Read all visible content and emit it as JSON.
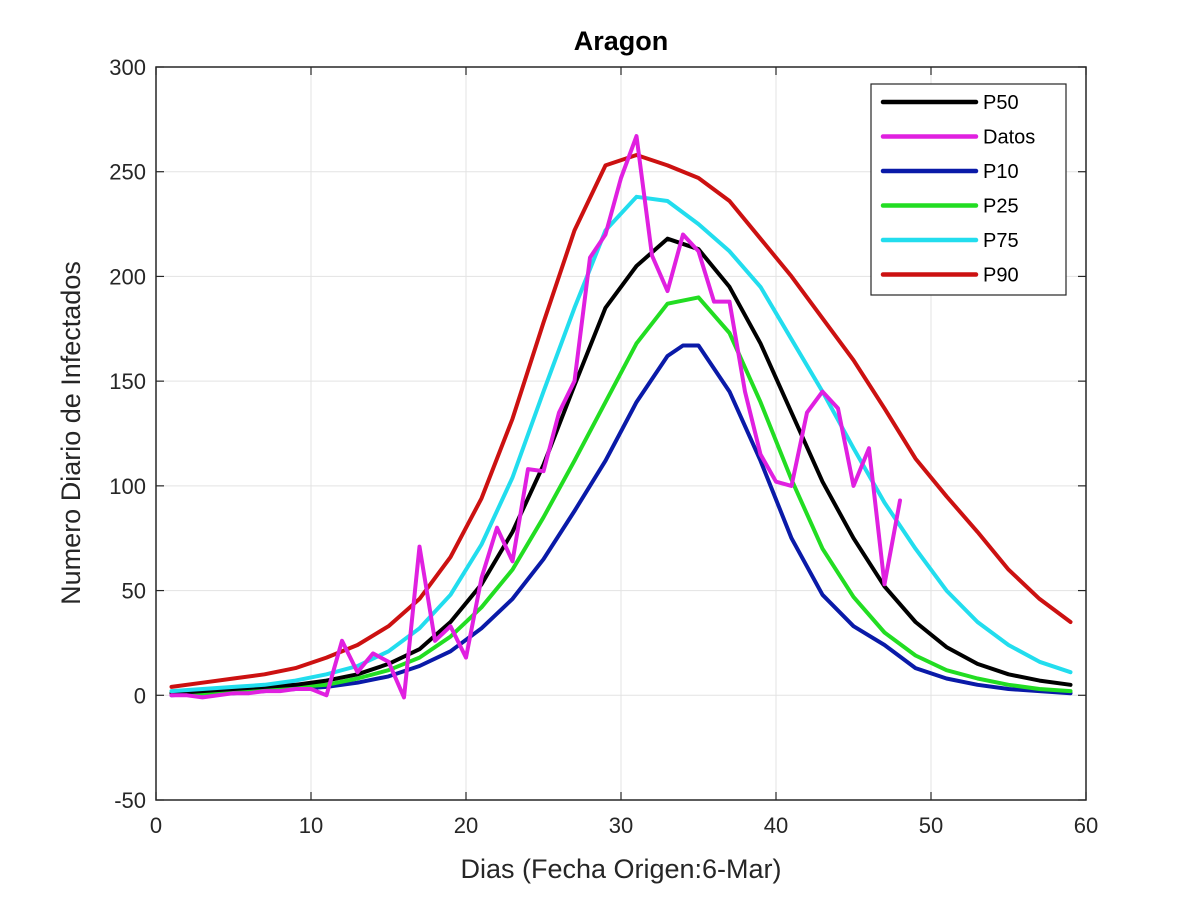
{
  "chart_data": {
    "type": "line",
    "title": "Aragon",
    "xlabel": "Dias (Fecha Origen:6-Mar)",
    "ylabel": "Numero Diario de Infectados",
    "xlim": [
      0,
      60
    ],
    "ylim": [
      -50,
      300
    ],
    "xticks": [
      0,
      10,
      20,
      30,
      40,
      50,
      60
    ],
    "yticks": [
      -50,
      0,
      50,
      100,
      150,
      200,
      250,
      300
    ],
    "grid": true,
    "legend_position": "top-right",
    "series": [
      {
        "name": "P50",
        "color": "#000000",
        "x": [
          1,
          3,
          5,
          7,
          9,
          11,
          13,
          15,
          17,
          19,
          21,
          23,
          25,
          27,
          29,
          31,
          33,
          35,
          37,
          39,
          41,
          43,
          45,
          47,
          49,
          51,
          53,
          55,
          57,
          59
        ],
        "values": [
          1,
          2,
          3,
          4,
          5,
          7,
          10,
          15,
          22,
          35,
          53,
          78,
          110,
          148,
          185,
          205,
          218,
          213,
          195,
          168,
          135,
          102,
          75,
          52,
          35,
          23,
          15,
          10,
          7,
          5
        ]
      },
      {
        "name": "Datos",
        "color": "#e020e0",
        "x": [
          1,
          2,
          3,
          4,
          5,
          6,
          7,
          8,
          9,
          10,
          11,
          12,
          13,
          14,
          15,
          16,
          17,
          18,
          19,
          20,
          21,
          22,
          23,
          24,
          25,
          26,
          27,
          28,
          29,
          30,
          31,
          32,
          33,
          34,
          35,
          36,
          37,
          38,
          39,
          40,
          41,
          42,
          43,
          44,
          45,
          46,
          47,
          48
        ],
        "values": [
          0,
          0,
          -1,
          0,
          1,
          1,
          2,
          2,
          3,
          3,
          0,
          26,
          11,
          20,
          16,
          -1,
          71,
          26,
          33,
          18,
          56,
          80,
          64,
          108,
          107,
          135,
          150,
          209,
          220,
          247,
          267,
          210,
          193,
          220,
          212,
          188,
          188,
          145,
          115,
          102,
          100,
          135,
          145,
          137,
          100,
          118,
          53,
          93
        ]
      },
      {
        "name": "P10",
        "color": "#0a1aa8",
        "x": [
          1,
          3,
          5,
          7,
          9,
          11,
          13,
          15,
          17,
          19,
          21,
          23,
          25,
          27,
          29,
          31,
          33,
          34,
          35,
          37,
          39,
          41,
          43,
          45,
          47,
          49,
          51,
          53,
          55,
          57,
          59
        ],
        "values": [
          0,
          1,
          1,
          2,
          3,
          4,
          6,
          9,
          14,
          21,
          32,
          46,
          65,
          88,
          112,
          140,
          162,
          167,
          167,
          145,
          112,
          75,
          48,
          33,
          24,
          13,
          8,
          5,
          3,
          2,
          1
        ]
      },
      {
        "name": "P25",
        "color": "#22dd22",
        "x": [
          1,
          3,
          5,
          7,
          9,
          11,
          13,
          15,
          17,
          19,
          21,
          23,
          25,
          27,
          29,
          31,
          33,
          35,
          37,
          39,
          41,
          43,
          45,
          47,
          49,
          51,
          53,
          55,
          57,
          59
        ],
        "values": [
          1,
          1,
          2,
          3,
          4,
          5,
          8,
          12,
          18,
          28,
          42,
          60,
          85,
          112,
          140,
          168,
          187,
          190,
          173,
          140,
          103,
          70,
          47,
          30,
          19,
          12,
          8,
          5,
          3,
          2
        ]
      },
      {
        "name": "P75",
        "color": "#22ddee",
        "x": [
          1,
          3,
          5,
          7,
          9,
          11,
          13,
          15,
          17,
          19,
          21,
          23,
          25,
          27,
          29,
          31,
          33,
          35,
          37,
          39,
          41,
          43,
          45,
          47,
          49,
          51,
          53,
          55,
          57,
          59
        ],
        "values": [
          2,
          3,
          4,
          5,
          7,
          10,
          14,
          21,
          32,
          48,
          72,
          104,
          145,
          185,
          222,
          238,
          236,
          225,
          212,
          195,
          170,
          145,
          118,
          92,
          70,
          50,
          35,
          24,
          16,
          11
        ]
      },
      {
        "name": "P90",
        "color": "#cc1111",
        "x": [
          1,
          3,
          5,
          7,
          9,
          11,
          13,
          15,
          17,
          19,
          21,
          23,
          25,
          27,
          29,
          31,
          33,
          35,
          37,
          39,
          41,
          43,
          45,
          47,
          49,
          51,
          53,
          55,
          57,
          59
        ],
        "values": [
          4,
          6,
          8,
          10,
          13,
          18,
          24,
          33,
          46,
          66,
          94,
          132,
          178,
          222,
          253,
          258,
          253,
          247,
          236,
          218,
          200,
          180,
          160,
          137,
          113,
          95,
          78,
          60,
          46,
          35
        ]
      }
    ]
  }
}
